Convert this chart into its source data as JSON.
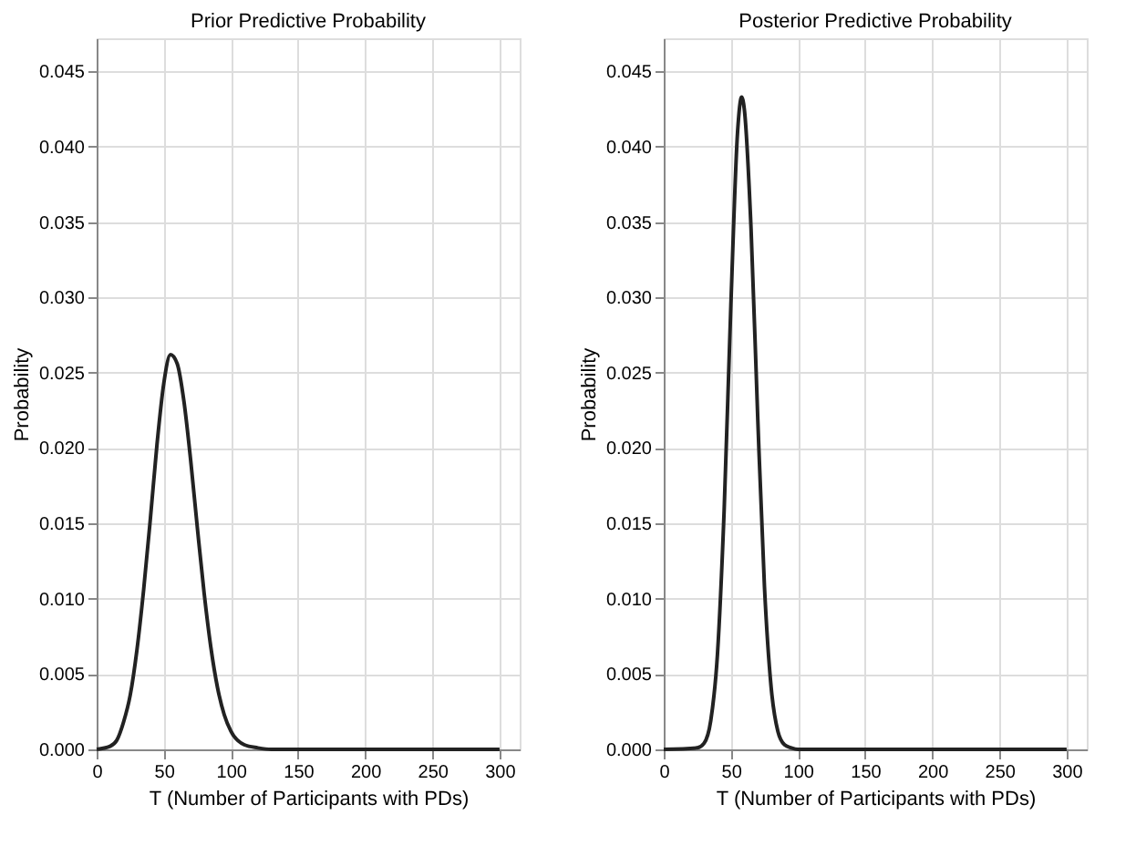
{
  "chart_data": [
    {
      "type": "line",
      "title": "Prior Predictive Probability",
      "xlabel": "T (Number of Participants with PDs)",
      "ylabel": "Probability",
      "xlim": [
        0,
        315
      ],
      "xticks": [
        0,
        50,
        100,
        150,
        200,
        250,
        300
      ],
      "ylim": [
        0,
        0.0472
      ],
      "yticks": [
        {
          "value": 0,
          "label": "0.000"
        },
        {
          "value": 0.005,
          "label": "0.005"
        },
        {
          "value": 0.01,
          "label": "0.010"
        },
        {
          "value": 0.015,
          "label": "0.015"
        },
        {
          "value": 0.02,
          "label": "0.020"
        },
        {
          "value": 0.025,
          "label": "0.025"
        },
        {
          "value": 0.03,
          "label": "0.030"
        },
        {
          "value": 0.035,
          "label": "0.035"
        },
        {
          "value": 0.04,
          "label": "0.040"
        },
        {
          "value": 0.045,
          "label": "0.045"
        }
      ],
      "grid": true,
      "marker": "none",
      "line_style": "solid",
      "series": [
        {
          "color": "#222222",
          "x": [
            0,
            10,
            15,
            20,
            25,
            30,
            35,
            40,
            45,
            50,
            55,
            60,
            65,
            70,
            75,
            80,
            85,
            90,
            95,
            100,
            110,
            120,
            130,
            150,
            200,
            250,
            300
          ],
          "values": [
            0,
            0.0002,
            0.0006,
            0.0018,
            0.0036,
            0.0066,
            0.0106,
            0.0153,
            0.0203,
            0.0243,
            0.0262,
            0.0256,
            0.0231,
            0.0192,
            0.0147,
            0.0104,
            0.0068,
            0.0041,
            0.0023,
            0.0012,
            0.0003,
            0.0001,
            0,
            0,
            0,
            0,
            0
          ]
        }
      ]
    },
    {
      "type": "line",
      "title": "Posterior Predictive Probability",
      "xlabel": "T (Number of Participants with PDs)",
      "ylabel": "Probability",
      "xlim": [
        0,
        315
      ],
      "xticks": [
        0,
        50,
        100,
        150,
        200,
        250,
        300
      ],
      "ylim": [
        0,
        0.0472
      ],
      "yticks": [
        {
          "value": 0,
          "label": "0.000"
        },
        {
          "value": 0.005,
          "label": "0.005"
        },
        {
          "value": 0.01,
          "label": "0.010"
        },
        {
          "value": 0.015,
          "label": "0.015"
        },
        {
          "value": 0.02,
          "label": "0.020"
        },
        {
          "value": 0.025,
          "label": "0.025"
        },
        {
          "value": 0.03,
          "label": "0.030"
        },
        {
          "value": 0.035,
          "label": "0.035"
        },
        {
          "value": 0.04,
          "label": "0.040"
        },
        {
          "value": 0.045,
          "label": "0.045"
        }
      ],
      "grid": true,
      "marker": "none",
      "line_style": "solid",
      "series": [
        {
          "color": "#222222",
          "x": [
            0,
            25,
            30,
            35,
            40,
            45,
            50,
            55,
            58,
            60,
            65,
            70,
            75,
            80,
            85,
            90,
            95,
            100,
            150,
            200,
            250,
            300
          ],
          "values": [
            0,
            0.0001,
            0.0004,
            0.0019,
            0.0063,
            0.0159,
            0.0295,
            0.041,
            0.0433,
            0.0425,
            0.0346,
            0.022,
            0.0108,
            0.0041,
            0.0012,
            0.0003,
            0.0001,
            0,
            0,
            0,
            0,
            0
          ]
        }
      ]
    }
  ]
}
